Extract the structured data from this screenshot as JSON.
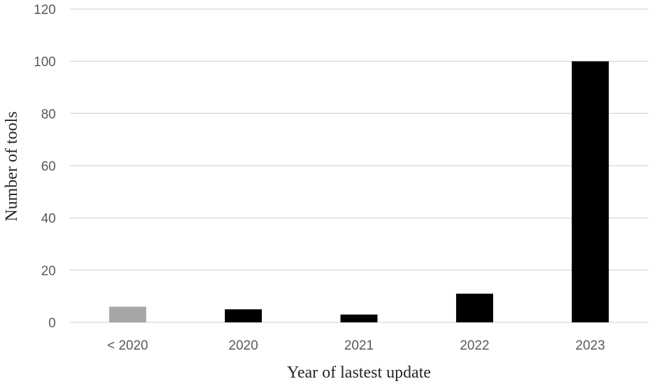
{
  "chart_data": {
    "type": "bar",
    "categories": [
      "< 2020",
      "2020",
      "2021",
      "2022",
      "2023"
    ],
    "values": [
      6,
      5,
      3,
      11,
      100
    ],
    "bar_colors": [
      "#a6a6a6",
      "#000000",
      "#000000",
      "#000000",
      "#000000"
    ],
    "title": "",
    "xlabel": "Year of lastest update",
    "ylabel": "Number of tools",
    "ylim": [
      0,
      120
    ],
    "yticks": [
      0,
      20,
      40,
      60,
      80,
      100,
      120
    ],
    "grid": true,
    "legend": "none"
  }
}
